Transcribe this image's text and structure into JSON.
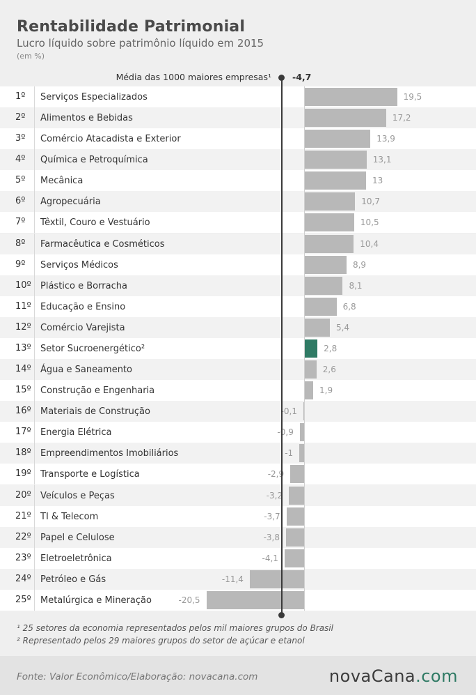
{
  "title": "Rentabilidade Patrimonial",
  "subtitle": "Lucro líquido sobre patrimônio líquido em 2015",
  "unit": "(em %)",
  "average": {
    "label": "Média das 1000 maiores empresas¹",
    "value": -4.7,
    "value_text": "-4,7"
  },
  "colors": {
    "bar": "#b8b8b8",
    "highlight": "#2f7a64",
    "avg_line": "#3a3a3a"
  },
  "chart_data": {
    "type": "bar",
    "orientation": "horizontal",
    "categories": [
      "Serviços Especializados",
      "Alimentos e Bebidas",
      "Comércio Atacadista e Exterior",
      "Química e Petroquímica",
      "Mecânica",
      "Agropecuária",
      "Têxtil, Couro e Vestuário",
      "Farmacêutica e Cosméticos",
      "Serviços Médicos",
      "Plástico e Borracha",
      "Educação e Ensino",
      "Comércio Varejista",
      "Setor Sucroenergético²",
      "Água e Saneamento",
      "Construção e Engenharia",
      "Materiais de Construção",
      "Energia Elétrica",
      "Empreendimentos Imobiliários",
      "Transporte e Logística",
      "Veículos e Peças",
      "TI & Telecom",
      "Papel e Celulose",
      "Eletroeletrônica",
      "Petróleo e Gás",
      "Metalúrgica e Mineração"
    ],
    "ranks": [
      "1º",
      "2º",
      "3º",
      "4º",
      "5º",
      "6º",
      "7º",
      "8º",
      "9º",
      "10º",
      "11º",
      "12º",
      "13º",
      "14º",
      "15º",
      "16º",
      "17º",
      "18º",
      "19º",
      "20º",
      "21º",
      "22º",
      "23º",
      "24º",
      "25º"
    ],
    "values": [
      19.5,
      17.2,
      13.9,
      13.1,
      13,
      10.7,
      10.5,
      10.4,
      8.9,
      8.1,
      6.8,
      5.4,
      2.8,
      2.6,
      1.9,
      -0.1,
      -0.9,
      -1,
      -2.9,
      -3.2,
      -3.7,
      -3.8,
      -4.1,
      -11.4,
      -20.5
    ],
    "value_labels": [
      "19,5",
      "17,2",
      "13,9",
      "13,1",
      "13",
      "10,7",
      "10,5",
      "10,4",
      "8,9",
      "8,1",
      "6,8",
      "5,4",
      "2,8",
      "2,6",
      "1,9",
      "-0,1",
      "-0,9",
      "-1",
      "-2,9",
      "-3,2",
      "-3,7",
      "-3,8",
      "-4,1",
      "-11,4",
      "-20,5"
    ],
    "highlight_index": 12,
    "reference_line": -4.7
  },
  "footnotes": [
    "¹ 25 setores da economia representados pelos mil maiores grupos do Brasil",
    "² Representado pelos 29 maiores grupos do setor de açúcar e etanol"
  ],
  "footer": {
    "source": "Fonte:  Valor  Econômico/Elaboração: novacana.com",
    "logo_main": "novaCana",
    "logo_tld": ".com"
  }
}
